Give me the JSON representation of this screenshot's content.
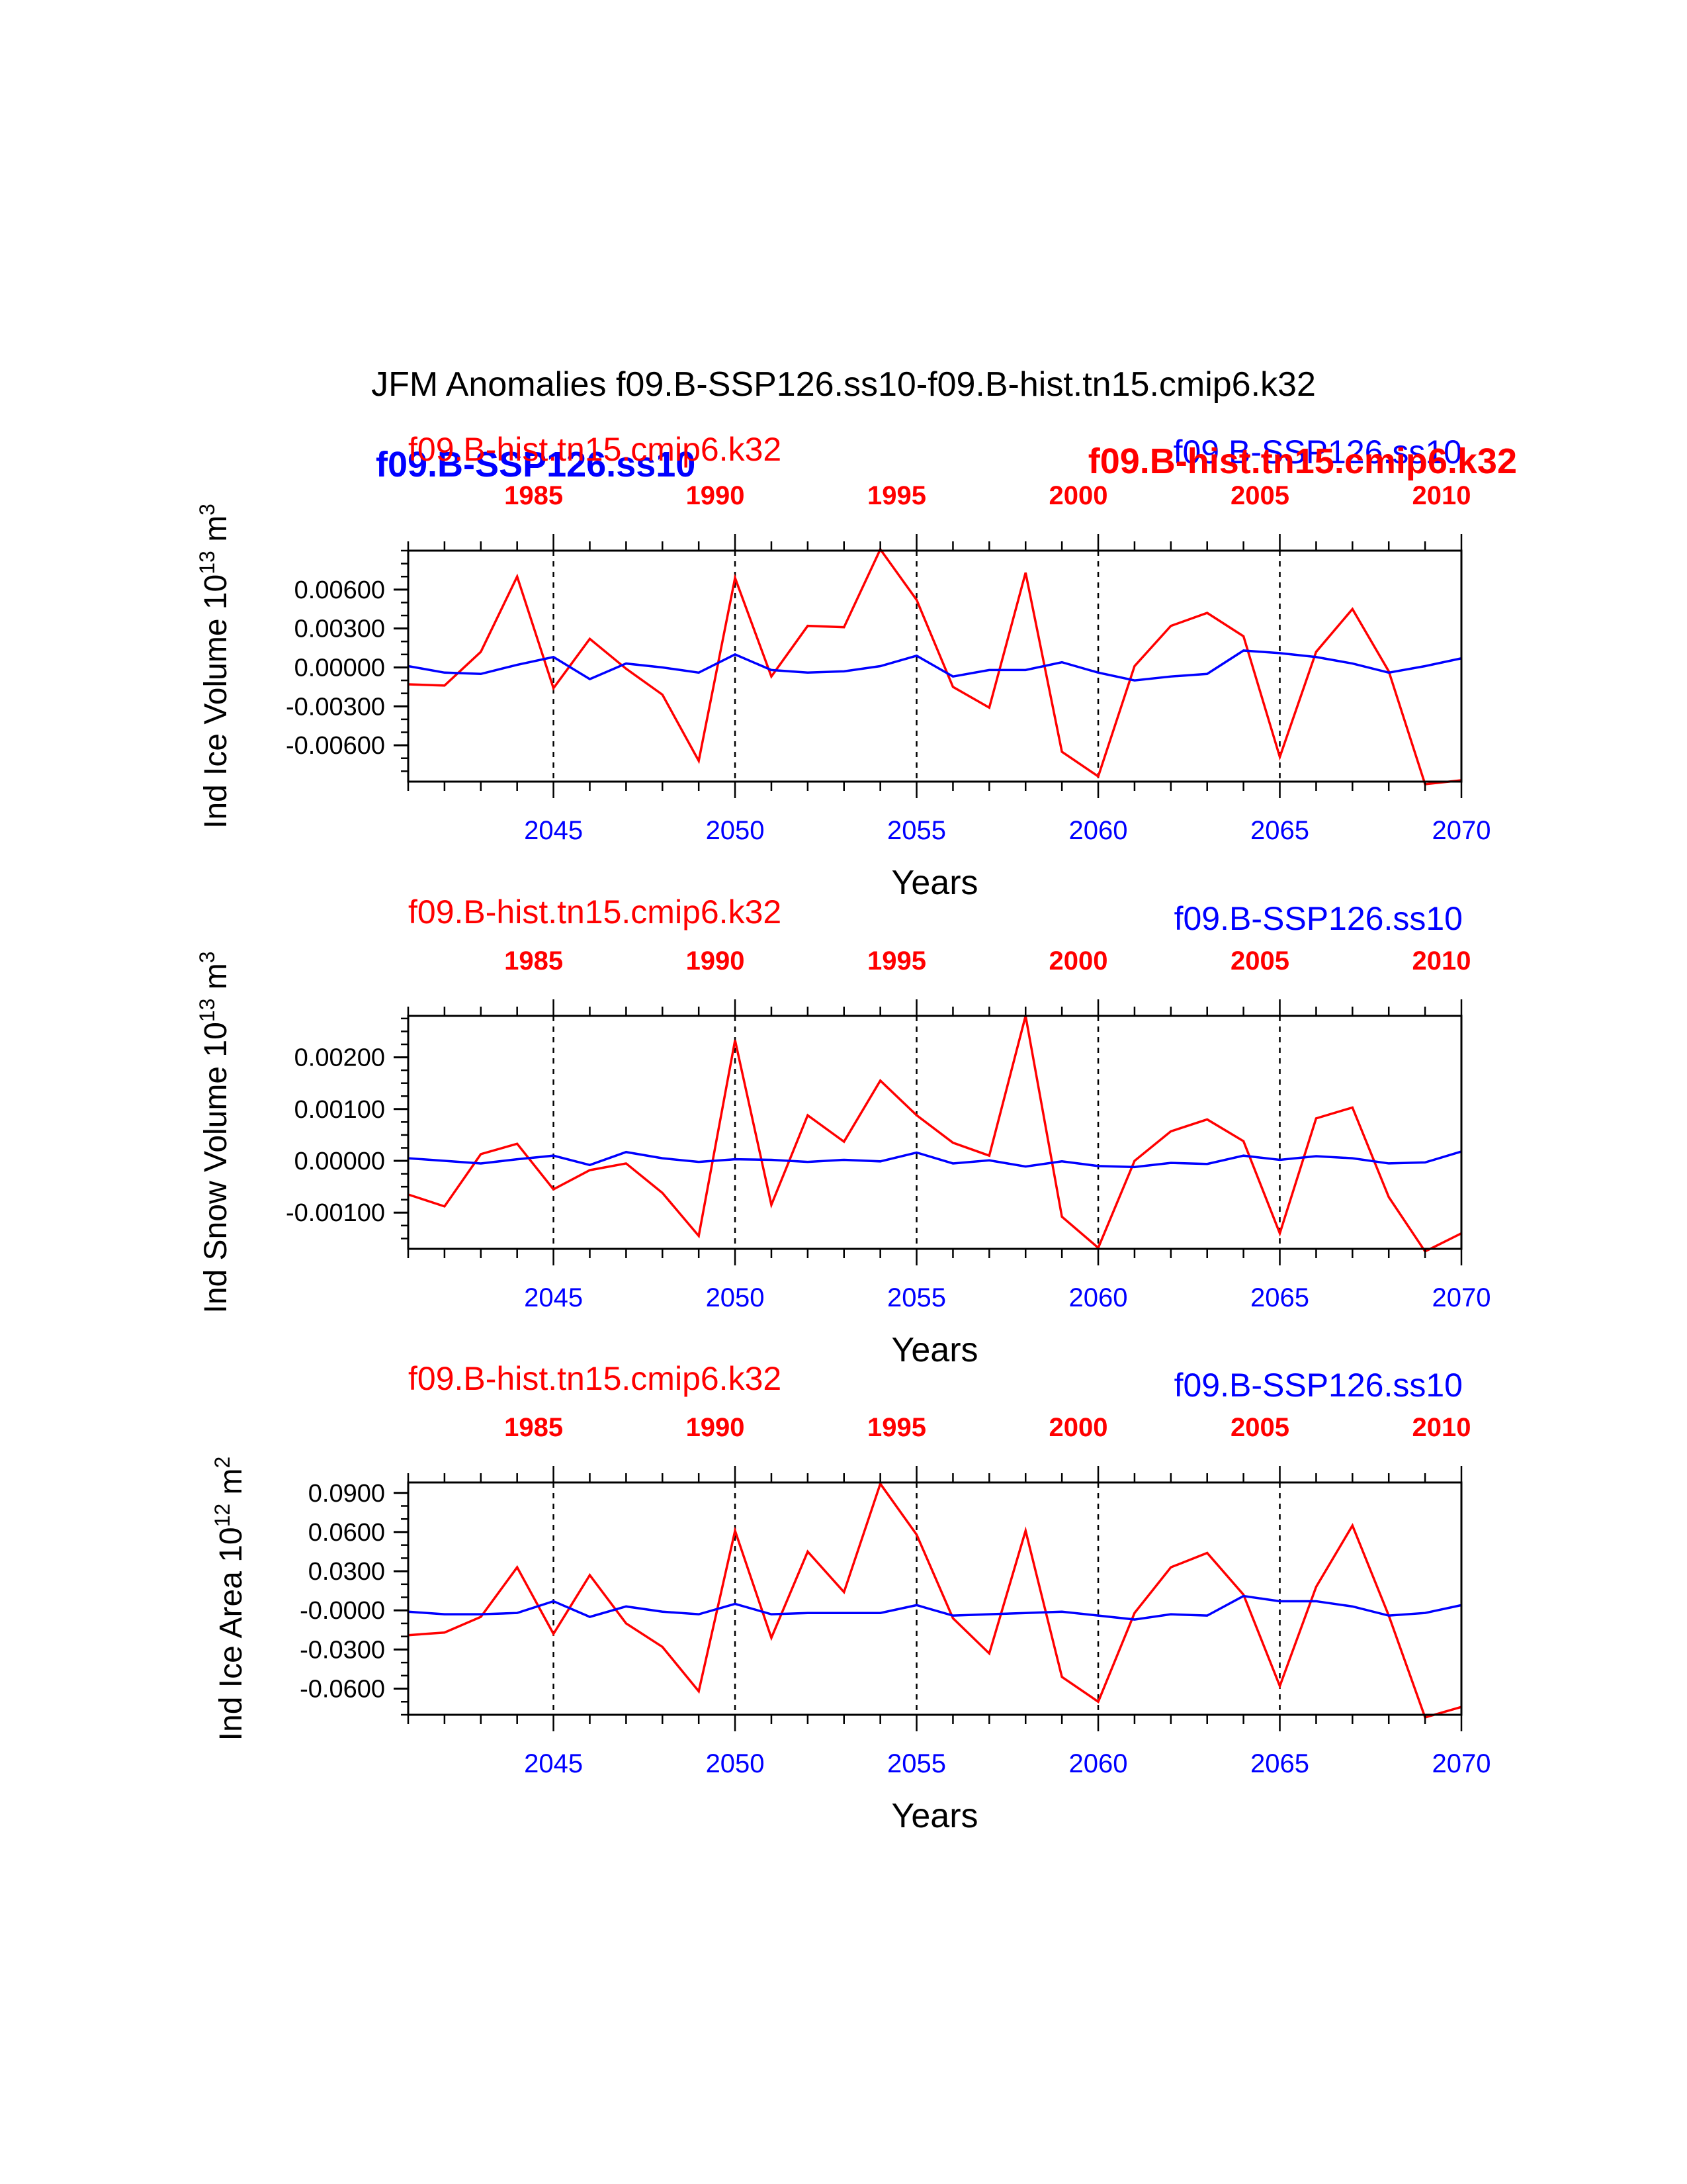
{
  "title": "JFM Anomalies f09.B-SSP126.ss10-f09.B-hist.tn15.cmip6.k32",
  "colors": {
    "hist": "#ff0000",
    "ssp": "#0000ff",
    "axis": "#000000"
  },
  "overlay_labels": {
    "ssp_bold": "f09.B-SSP126.ss10",
    "hist_bold": "f09.B-hist.tn15.cmip6.k32"
  },
  "chart_data": [
    {
      "type": "line",
      "ylabel": "Ind Ice Volume 10",
      "yexp": "13",
      "yunit": " m",
      "yunit_exp": "3",
      "xlabel": "Years",
      "hist_label": "f09.B-hist.tn15.cmip6.k32",
      "ssp_label": "f09.B-SSP126.ss10",
      "xlim": [
        2041,
        2070
      ],
      "ylim": [
        -0.0088,
        0.009
      ],
      "yticks": [
        0.006,
        0.003,
        0.0,
        -0.003,
        -0.006
      ],
      "ytick_labels": [
        "0.00600",
        "0.00300",
        "0.00000",
        "-0.00300",
        "-0.00600"
      ],
      "yminor_step": 0.001,
      "xticks_bottom": [
        2045,
        2050,
        2055,
        2060,
        2065,
        2070
      ],
      "xticks_top": [
        1985,
        1990,
        1995,
        2000,
        2005,
        2010
      ],
      "dashed_x": [
        2045,
        2050,
        2055,
        2060,
        2065
      ],
      "x": [
        2041,
        2042,
        2043,
        2044,
        2045,
        2046,
        2047,
        2048,
        2049,
        2050,
        2051,
        2052,
        2053,
        2054,
        2055,
        2056,
        2057,
        2058,
        2059,
        2060,
        2061,
        2062,
        2063,
        2064,
        2065,
        2066,
        2067,
        2068,
        2069,
        2070
      ],
      "series": [
        {
          "name": "f09.B-hist.tn15.cmip6.k32",
          "color": "#ff0000",
          "values": [
            -0.0013,
            -0.0014,
            0.0012,
            0.007,
            -0.0016,
            0.0022,
            -0.0001,
            -0.0021,
            -0.0072,
            0.0069,
            -0.0007,
            0.0032,
            0.0031,
            0.0091,
            0.0052,
            -0.0015,
            -0.0031,
            0.0073,
            -0.0065,
            -0.0084,
            0.0001,
            0.0032,
            0.0042,
            0.0024,
            -0.0069,
            0.0012,
            0.0045,
            -0.0003,
            -0.009,
            -0.0087
          ]
        },
        {
          "name": "f09.B-SSP126.ss10",
          "color": "#0000ff",
          "values": [
            0.0001,
            -0.0004,
            -0.0005,
            0.0002,
            0.0008,
            -0.0009,
            0.0003,
            0.0,
            -0.0004,
            0.001,
            -0.0002,
            -0.0004,
            -0.0003,
            0.0001,
            0.0009,
            -0.0007,
            -0.0002,
            -0.0002,
            0.0004,
            -0.0004,
            -0.001,
            -0.0007,
            -0.0005,
            0.0013,
            0.0011,
            0.0008,
            0.0003,
            -0.0004,
            0.0001,
            0.0007
          ]
        }
      ]
    },
    {
      "type": "line",
      "ylabel": "Ind Snow Volume 10",
      "yexp": "13",
      "yunit": " m",
      "yunit_exp": "3",
      "xlabel": "Years",
      "hist_label": "f09.B-hist.tn15.cmip6.k32",
      "ssp_label": "f09.B-SSP126.ss10",
      "xlim": [
        2041,
        2070
      ],
      "ylim": [
        -0.0017,
        0.0028
      ],
      "yticks": [
        0.002,
        0.001,
        0.0,
        -0.001
      ],
      "ytick_labels": [
        "0.00200",
        "0.00100",
        "0.00000",
        "-0.00100"
      ],
      "yminor_step": 0.00025,
      "xticks_bottom": [
        2045,
        2050,
        2055,
        2060,
        2065,
        2070
      ],
      "xticks_top": [
        1985,
        1990,
        1995,
        2000,
        2005,
        2010
      ],
      "dashed_x": [
        2045,
        2050,
        2055,
        2060,
        2065
      ],
      "x": [
        2041,
        2042,
        2043,
        2044,
        2045,
        2046,
        2047,
        2048,
        2049,
        2050,
        2051,
        2052,
        2053,
        2054,
        2055,
        2056,
        2057,
        2058,
        2059,
        2060,
        2061,
        2062,
        2063,
        2064,
        2065,
        2066,
        2067,
        2068,
        2069,
        2070
      ],
      "series": [
        {
          "name": "f09.B-hist.tn15.cmip6.k32",
          "color": "#ff0000",
          "values": [
            -0.00065,
            -0.00088,
            0.00013,
            0.00033,
            -0.00055,
            -0.00018,
            -5e-05,
            -0.00062,
            -0.00145,
            0.00233,
            -0.00085,
            0.00088,
            0.00037,
            0.00155,
            0.00088,
            0.00035,
            0.0001,
            0.0028,
            -0.00108,
            -0.00168,
            0.0,
            0.00057,
            0.0008,
            0.00038,
            -0.0014,
            0.00082,
            0.00103,
            -0.0007,
            -0.00175,
            -0.0014
          ]
        },
        {
          "name": "f09.B-SSP126.ss10",
          "color": "#0000ff",
          "values": [
            5e-05,
            0.0,
            -5e-05,
            3e-05,
            0.0001,
            -8e-05,
            0.00017,
            5e-05,
            -2e-05,
            3e-05,
            2e-05,
            -2e-05,
            2e-05,
            -1e-05,
            0.00016,
            -5e-05,
            1e-05,
            -0.00011,
            -1e-05,
            -0.0001,
            -0.00012,
            -4e-05,
            -6e-05,
            0.0001,
            2e-05,
            9e-05,
            5e-05,
            -5e-05,
            -3e-05,
            0.00018
          ]
        }
      ]
    },
    {
      "type": "line",
      "ylabel": "Ind Ice Area 10",
      "yexp": "12",
      "yunit": " m",
      "yunit_exp": "2",
      "xlabel": "Years",
      "hist_label": "f09.B-hist.tn15.cmip6.k32",
      "ssp_label": "f09.B-SSP126.ss10",
      "xlim": [
        2041,
        2070
      ],
      "ylim": [
        -0.08,
        0.098
      ],
      "yticks": [
        0.09,
        0.06,
        0.03,
        0.0,
        -0.03,
        -0.06
      ],
      "ytick_labels": [
        "0.0900",
        "0.0600",
        "0.0300",
        "-0.0000",
        "-0.0300",
        "-0.0600"
      ],
      "yminor_step": 0.01,
      "xticks_bottom": [
        2045,
        2050,
        2055,
        2060,
        2065,
        2070
      ],
      "xticks_top": [
        1985,
        1990,
        1995,
        2000,
        2005,
        2010
      ],
      "dashed_x": [
        2045,
        2050,
        2055,
        2060,
        2065
      ],
      "x": [
        2041,
        2042,
        2043,
        2044,
        2045,
        2046,
        2047,
        2048,
        2049,
        2050,
        2051,
        2052,
        2053,
        2054,
        2055,
        2056,
        2057,
        2058,
        2059,
        2060,
        2061,
        2062,
        2063,
        2064,
        2065,
        2066,
        2067,
        2068,
        2069,
        2070
      ],
      "series": [
        {
          "name": "f09.B-hist.tn15.cmip6.k32",
          "color": "#ff0000",
          "values": [
            -0.019,
            -0.017,
            -0.005,
            0.033,
            -0.018,
            0.027,
            -0.01,
            -0.028,
            -0.062,
            0.061,
            -0.021,
            0.045,
            0.014,
            0.097,
            0.058,
            -0.006,
            -0.033,
            0.061,
            -0.051,
            -0.07,
            -0.002,
            0.033,
            0.044,
            0.012,
            -0.058,
            0.018,
            0.065,
            -0.004,
            -0.082,
            -0.074
          ]
        },
        {
          "name": "f09.B-SSP126.ss10",
          "color": "#0000ff",
          "values": [
            -0.001,
            -0.003,
            -0.003,
            -0.002,
            0.007,
            -0.005,
            0.003,
            -0.001,
            -0.003,
            0.005,
            -0.003,
            -0.002,
            -0.002,
            -0.002,
            0.004,
            -0.004,
            -0.003,
            -0.002,
            -0.001,
            -0.004,
            -0.007,
            -0.003,
            -0.004,
            0.011,
            0.007,
            0.007,
            0.003,
            -0.004,
            -0.002,
            0.004
          ]
        }
      ]
    }
  ]
}
